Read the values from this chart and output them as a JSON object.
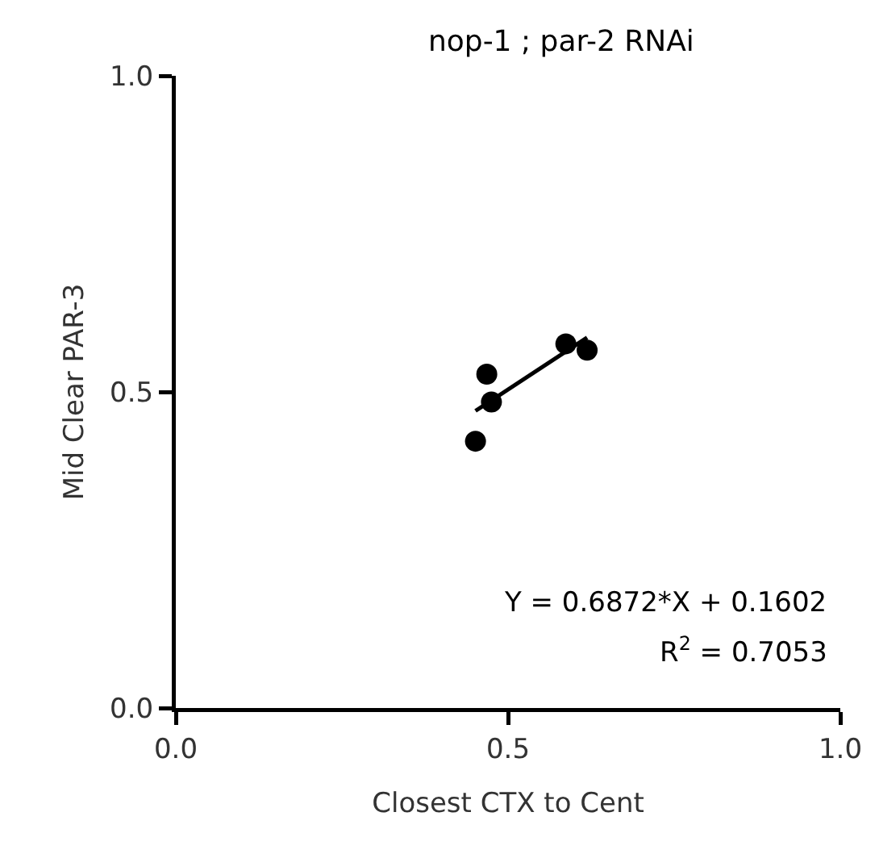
{
  "chart_data": {
    "type": "scatter",
    "title": "nop-1 ; par-2 RNAi",
    "xlabel": "Closest CTX to Cent",
    "ylabel": "Mid Clear PAR-3",
    "series": [
      {
        "color": "#000000",
        "x": [
          0.451,
          0.468,
          0.475,
          0.587,
          0.619
        ],
        "values": [
          0.422,
          0.528,
          0.484,
          0.576,
          0.566
        ]
      },
      {
        "type": "line",
        "marker": "none",
        "color": "#000000",
        "x": [
          0.451,
          0.619
        ],
        "values": [
          0.47,
          0.586
        ]
      }
    ],
    "annotations": [
      "Y = 0.6872*X + 0.1602",
      "R$^{2}$ = 0.7053"
    ],
    "xlim": [
      0,
      1
    ],
    "ylim": [
      0,
      1
    ],
    "xticks": [
      {
        "value": 0,
        "label": "0.0"
      },
      0.5,
      {
        "value": 1,
        "label": "1.0"
      }
    ],
    "yticks": [
      {
        "value": 0,
        "label": "0.0"
      },
      0.5,
      {
        "value": 1,
        "label": "1.0"
      }
    ],
    "grid": false,
    "marker": "circle"
  }
}
